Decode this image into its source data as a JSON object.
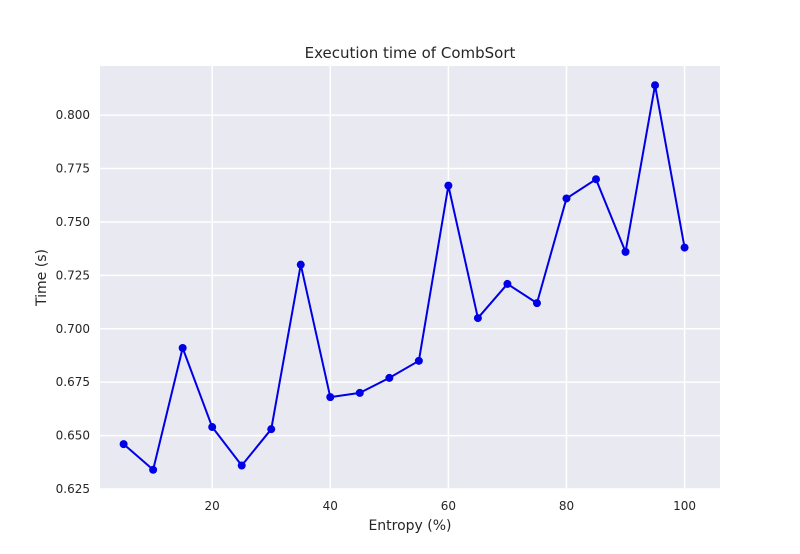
{
  "chart_data": {
    "type": "line",
    "title": "Execution time of CombSort",
    "xlabel": "Entropy (%)",
    "ylabel": "Time (s)",
    "xlim": [
      1,
      106
    ],
    "ylim": [
      0.625,
      0.823
    ],
    "xticks": [
      20,
      40,
      60,
      80,
      100
    ],
    "xtick_labels": [
      "20",
      "40",
      "60",
      "80",
      "100"
    ],
    "yticks": [
      0.625,
      0.65,
      0.675,
      0.7,
      0.725,
      0.75,
      0.775,
      0.8
    ],
    "ytick_labels": [
      "0.625",
      "0.650",
      "0.675",
      "0.700",
      "0.725",
      "0.750",
      "0.775",
      "0.800"
    ],
    "grid": true,
    "colors": {
      "line": "#0000e6",
      "plot_background": "#e9e9f1",
      "grid": "#ffffff"
    },
    "series": [
      {
        "x": [
          5,
          10,
          15,
          20,
          25,
          30,
          35,
          40,
          45,
          50,
          55,
          60,
          65,
          70,
          75,
          80,
          85,
          90,
          95,
          100
        ],
        "y": [
          0.646,
          0.634,
          0.691,
          0.654,
          0.636,
          0.653,
          0.73,
          0.668,
          0.67,
          0.677,
          0.685,
          0.767,
          0.705,
          0.721,
          0.712,
          0.761,
          0.77,
          0.736,
          0.814,
          0.738
        ]
      }
    ]
  }
}
